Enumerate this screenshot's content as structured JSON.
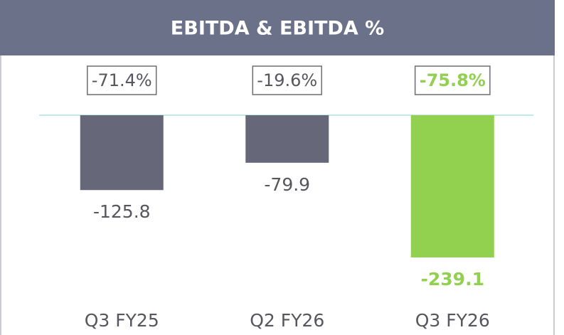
{
  "chart_data": {
    "type": "bar",
    "title": "EBITDA & EBITDA %",
    "categories": [
      "Q3 FY25",
      "Q2 FY26",
      "Q3 FY26"
    ],
    "values": [
      -125.8,
      -79.9,
      -239.1
    ],
    "colors": [
      "#666879",
      "#666879",
      "#92d050"
    ],
    "annotations": [
      "-71.4%",
      "-19.6%",
      "-75.8%"
    ]
  }
}
